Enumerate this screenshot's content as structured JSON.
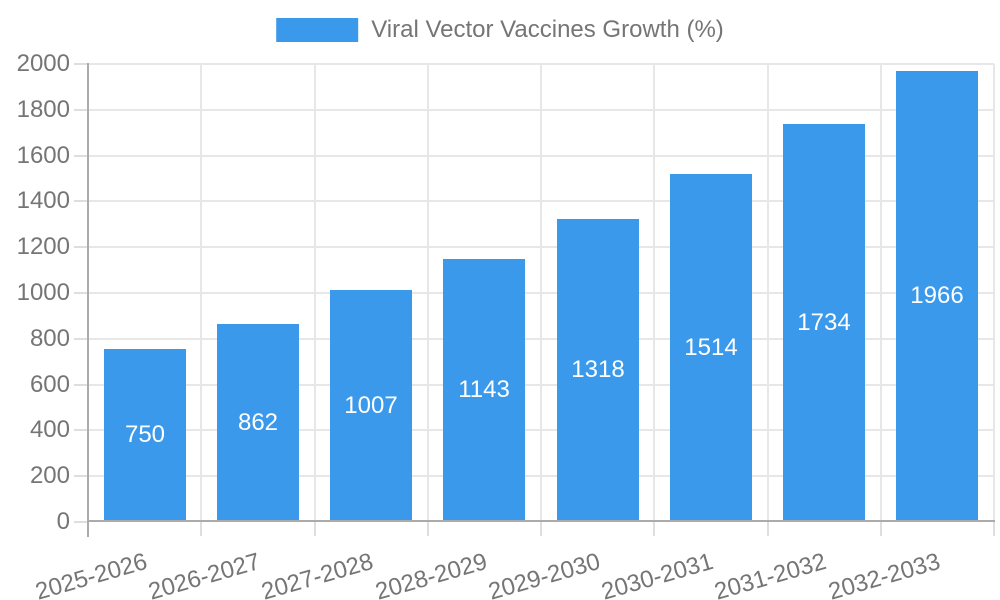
{
  "legend": {
    "label": "Viral Vector Vaccines Growth (%)"
  },
  "chart_data": {
    "type": "bar",
    "title": "Viral Vector Vaccines Growth (%)",
    "categories": [
      "2025-2026",
      "2026-2027",
      "2027-2028",
      "2028-2029",
      "2029-2030",
      "2030-2031",
      "2031-2032",
      "2032-2033"
    ],
    "values": [
      750,
      862,
      1007,
      1143,
      1318,
      1514,
      1734,
      1966
    ],
    "value_labels_position": "inside-center",
    "xlabel": "",
    "ylabel": "",
    "ylim": [
      0,
      2000
    ],
    "ytick_step": 200,
    "yticks": [
      0,
      200,
      400,
      600,
      800,
      1000,
      1200,
      1400,
      1600,
      1800,
      2000
    ],
    "grid": true,
    "legend_position": "top-center",
    "x_label_rotation_deg": -16,
    "colors": {
      "bar": "#3B99EB",
      "value_label": "#FFFFFF",
      "grid": "#E7E7E7",
      "axis": "#ABABAB",
      "tick": "#DEDEDE",
      "tick_label": "#757575"
    }
  }
}
